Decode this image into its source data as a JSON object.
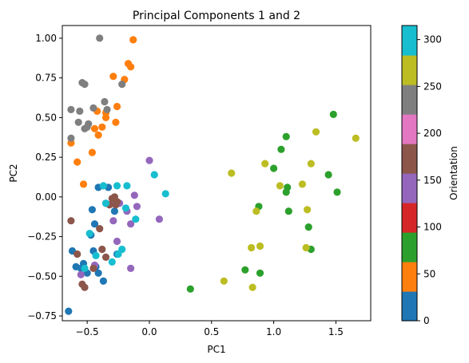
{
  "chart_data": {
    "type": "scatter",
    "title": "Principal Components 1 and 2",
    "xlabel": "PC1",
    "ylabel": "PC2",
    "xlim": [
      -0.7,
      1.78
    ],
    "ylim": [
      -0.78,
      1.08
    ],
    "xticks": [
      -0.5,
      0.0,
      0.5,
      1.0,
      1.5
    ],
    "xtick_labels": [
      "−0.5",
      "0.0",
      "0.5",
      "1.0",
      "1.5"
    ],
    "yticks": [
      -0.75,
      -0.5,
      -0.25,
      0.0,
      0.25,
      0.5,
      0.75,
      1.0
    ],
    "ytick_labels": [
      "−0.75",
      "−0.50",
      "−0.25",
      "0.00",
      "0.25",
      "0.50",
      "0.75",
      "1.00"
    ],
    "grid": false,
    "colorbar": {
      "label": "Orientation",
      "range": [
        0,
        315
      ],
      "ticks": [
        0,
        50,
        100,
        150,
        200,
        250,
        300
      ],
      "tick_labels": [
        "0",
        "50",
        "100",
        "150",
        "200",
        "250",
        "300"
      ],
      "bins": [
        {
          "from": 0,
          "to": 31.5,
          "color": "#1f77b4"
        },
        {
          "from": 31.5,
          "to": 63,
          "color": "#ff7f0e"
        },
        {
          "from": 63,
          "to": 94.5,
          "color": "#2ca02c"
        },
        {
          "from": 94.5,
          "to": 126,
          "color": "#d62728"
        },
        {
          "from": 126,
          "to": 157.5,
          "color": "#9467bd"
        },
        {
          "from": 157.5,
          "to": 189,
          "color": "#8c564b"
        },
        {
          "from": 189,
          "to": 220.5,
          "color": "#e377c2"
        },
        {
          "from": 220.5,
          "to": 252,
          "color": "#7f7f7f"
        },
        {
          "from": 252,
          "to": 283.5,
          "color": "#bcbd22"
        },
        {
          "from": 283.5,
          "to": 315,
          "color": "#17becf"
        }
      ]
    },
    "series": [
      {
        "orientation": 0,
        "color": "#1f77b4",
        "points": [
          [
            -0.65,
            -0.72
          ],
          [
            -0.62,
            -0.34
          ],
          [
            -0.59,
            -0.44
          ],
          [
            -0.55,
            -0.45
          ],
          [
            -0.53,
            -0.42
          ],
          [
            -0.5,
            -0.48
          ],
          [
            -0.47,
            -0.24
          ],
          [
            -0.46,
            -0.08
          ],
          [
            -0.45,
            -0.34
          ],
          [
            -0.44,
            -0.17
          ],
          [
            -0.43,
            -0.44
          ],
          [
            -0.41,
            -0.48
          ],
          [
            -0.37,
            -0.53
          ],
          [
            -0.35,
            -0.04
          ],
          [
            -0.28,
            -0.09
          ],
          [
            -0.26,
            -0.36
          ],
          [
            -0.33,
            0.06
          ],
          [
            -0.41,
            0.06
          ]
        ]
      },
      {
        "orientation": 45,
        "color": "#ff7f0e",
        "points": [
          [
            -0.63,
            0.34
          ],
          [
            -0.58,
            0.22
          ],
          [
            -0.53,
            0.08
          ],
          [
            -0.46,
            0.28
          ],
          [
            -0.44,
            0.43
          ],
          [
            -0.42,
            0.54
          ],
          [
            -0.41,
            0.39
          ],
          [
            -0.38,
            0.44
          ],
          [
            -0.35,
            0.5
          ],
          [
            -0.29,
            0.76
          ],
          [
            -0.27,
            0.47
          ],
          [
            -0.26,
            0.57
          ],
          [
            -0.2,
            0.74
          ],
          [
            -0.17,
            0.84
          ],
          [
            -0.15,
            0.82
          ],
          [
            -0.13,
            0.99
          ],
          [
            -0.35,
            0.53
          ]
        ]
      },
      {
        "orientation": 90,
        "color": "#2ca02c",
        "points": [
          [
            0.33,
            -0.58
          ],
          [
            0.77,
            -0.46
          ],
          [
            0.88,
            -0.06
          ],
          [
            0.89,
            -0.48
          ],
          [
            1.0,
            0.18
          ],
          [
            1.06,
            0.3
          ],
          [
            1.1,
            0.38
          ],
          [
            1.1,
            0.03
          ],
          [
            1.11,
            0.06
          ],
          [
            1.12,
            -0.09
          ],
          [
            1.28,
            -0.19
          ],
          [
            1.3,
            -0.33
          ],
          [
            1.44,
            0.14
          ],
          [
            1.48,
            0.52
          ],
          [
            1.51,
            0.03
          ]
        ]
      },
      {
        "orientation": 157.5,
        "color": "#9467bd",
        "points": [
          [
            -0.55,
            -0.49
          ],
          [
            -0.44,
            -0.43
          ],
          [
            -0.29,
            -0.15
          ],
          [
            -0.26,
            -0.28
          ],
          [
            -0.24,
            -0.04
          ],
          [
            -0.18,
            -0.09
          ],
          [
            -0.15,
            -0.17
          ],
          [
            -0.15,
            -0.45
          ],
          [
            -0.12,
            0.01
          ],
          [
            -0.1,
            -0.06
          ],
          [
            0.0,
            0.23
          ],
          [
            0.08,
            -0.14
          ],
          [
            -0.3,
            -0.04
          ]
        ]
      },
      {
        "orientation": 180,
        "color": "#8c564b",
        "points": [
          [
            -0.63,
            -0.15
          ],
          [
            -0.58,
            -0.36
          ],
          [
            -0.54,
            -0.55
          ],
          [
            -0.52,
            -0.57
          ],
          [
            -0.45,
            -0.45
          ],
          [
            -0.38,
            -0.33
          ],
          [
            -0.35,
            -0.38
          ],
          [
            -0.32,
            -0.05
          ],
          [
            -0.3,
            -0.01
          ],
          [
            -0.28,
            0.0
          ],
          [
            -0.27,
            -0.05
          ],
          [
            -0.26,
            -0.03
          ],
          [
            -0.4,
            -0.2
          ]
        ]
      },
      {
        "orientation": 240,
        "color": "#7f7f7f",
        "points": [
          [
            -0.63,
            0.55
          ],
          [
            -0.63,
            0.37
          ],
          [
            -0.57,
            0.47
          ],
          [
            -0.56,
            0.54
          ],
          [
            -0.54,
            0.72
          ],
          [
            -0.52,
            0.71
          ],
          [
            -0.52,
            0.43
          ],
          [
            -0.5,
            0.44
          ],
          [
            -0.49,
            0.46
          ],
          [
            -0.45,
            0.56
          ],
          [
            -0.4,
            1.0
          ],
          [
            -0.36,
            0.6
          ],
          [
            -0.34,
            0.55
          ],
          [
            -0.22,
            0.71
          ]
        ]
      },
      {
        "orientation": 270,
        "color": "#bcbd22",
        "points": [
          [
            0.6,
            -0.53
          ],
          [
            0.66,
            0.15
          ],
          [
            0.82,
            -0.32
          ],
          [
            0.83,
            -0.57
          ],
          [
            0.86,
            -0.09
          ],
          [
            0.89,
            -0.31
          ],
          [
            0.93,
            0.21
          ],
          [
            1.05,
            0.07
          ],
          [
            1.23,
            0.08
          ],
          [
            1.26,
            -0.32
          ],
          [
            1.27,
            -0.08
          ],
          [
            1.3,
            0.21
          ],
          [
            1.34,
            0.41
          ],
          [
            1.66,
            0.37
          ]
        ]
      },
      {
        "orientation": 300,
        "color": "#17becf",
        "points": [
          [
            -0.52,
            -0.45
          ],
          [
            -0.48,
            -0.23
          ],
          [
            -0.43,
            -0.37
          ],
          [
            -0.37,
            0.07
          ],
          [
            -0.35,
            -0.04
          ],
          [
            -0.3,
            -0.41
          ],
          [
            -0.26,
            0.07
          ],
          [
            -0.25,
            -0.36
          ],
          [
            -0.19,
            -0.07
          ],
          [
            -0.18,
            0.07
          ],
          [
            -0.11,
            -0.14
          ],
          [
            0.04,
            0.14
          ],
          [
            0.13,
            0.02
          ],
          [
            -0.22,
            -0.33
          ]
        ]
      }
    ]
  }
}
